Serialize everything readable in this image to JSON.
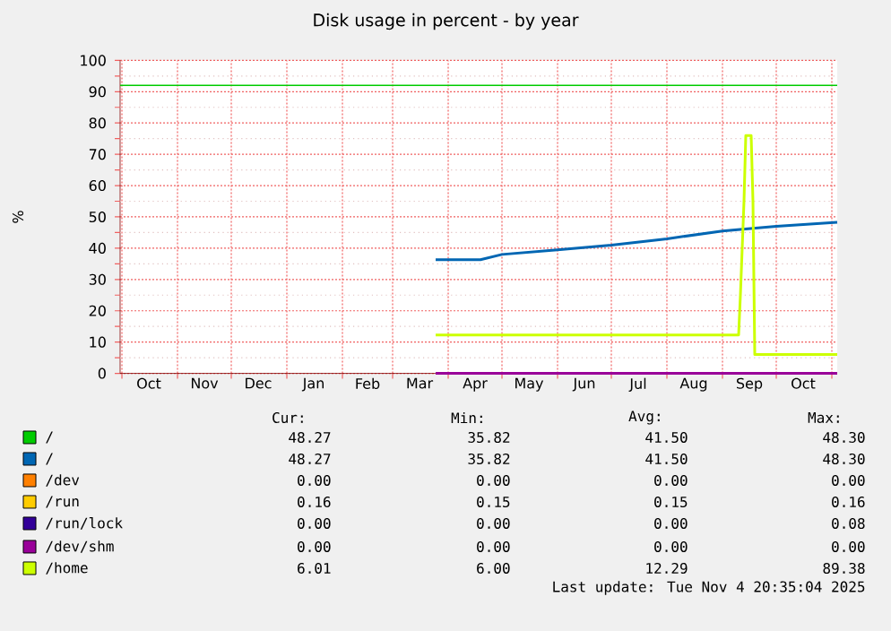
{
  "chart_data": {
    "type": "line",
    "title": "Disk usage in percent - by year",
    "ylabel": "%",
    "xlim": [
      "2024-09-30",
      "2025-11-04"
    ],
    "ylim": [
      0,
      100
    ],
    "xticks": [
      {
        "value": "2024-10-01",
        "label": null
      },
      {
        "value": "2024-11-01",
        "label": null
      },
      {
        "value": "2024-12-01",
        "label": null
      },
      {
        "value": "2025-01-01",
        "label": null
      },
      {
        "value": "2025-02-01",
        "label": null
      },
      {
        "value": "2025-03-01",
        "label": null
      },
      {
        "value": "2025-04-01",
        "label": null
      },
      {
        "value": "2025-05-01",
        "label": null
      },
      {
        "value": "2025-06-01",
        "label": null
      },
      {
        "value": "2025-07-01",
        "label": null
      },
      {
        "value": "2025-08-01",
        "label": null
      },
      {
        "value": "2025-09-01",
        "label": null
      },
      {
        "value": "2025-10-01",
        "label": null
      },
      {
        "value": "2025-11-01",
        "label": null
      },
      {
        "value": "2024-10-16",
        "label": "Oct"
      },
      {
        "value": "2024-11-16",
        "label": "Nov"
      },
      {
        "value": "2024-12-16",
        "label": "Dec"
      },
      {
        "value": "2025-01-16",
        "label": "Jan"
      },
      {
        "value": "2025-02-15",
        "label": "Feb"
      },
      {
        "value": "2025-03-16",
        "label": "Mar"
      },
      {
        "value": "2025-04-16",
        "label": "Apr"
      },
      {
        "value": "2025-05-16",
        "label": "May"
      },
      {
        "value": "2025-06-16",
        "label": "Jun"
      },
      {
        "value": "2025-07-16",
        "label": "Jul"
      },
      {
        "value": "2025-08-16",
        "label": "Aug"
      },
      {
        "value": "2025-09-16",
        "label": "Sep"
      },
      {
        "value": "2025-10-16",
        "label": "Oct"
      }
    ],
    "yticks": [
      0,
      10,
      20,
      30,
      40,
      50,
      60,
      70,
      80,
      90,
      100,
      {
        "value": 5,
        "label": null
      },
      {
        "value": 15,
        "label": null
      },
      {
        "value": 25,
        "label": null
      },
      {
        "value": 35,
        "label": null
      },
      {
        "value": 45,
        "label": null
      },
      {
        "value": 55,
        "label": null
      },
      {
        "value": 65,
        "label": null
      },
      {
        "value": 75,
        "label": null
      },
      {
        "value": 85,
        "label": null
      },
      {
        "value": 95,
        "label": null
      }
    ],
    "grid": true,
    "legend": "bottom",
    "ref_lines": [
      {
        "axis": "y",
        "value": 92,
        "color": "#00cc00"
      }
    ],
    "series": [
      {
        "name": "/",
        "color": "#00cc00",
        "values": [
          null
        ]
      },
      {
        "name": "/",
        "color": "#0066b3",
        "x": [
          "2025-03-25",
          "2025-04-19",
          "2025-05-01",
          "2025-06-01",
          "2025-07-01",
          "2025-08-01",
          "2025-09-01",
          "2025-10-01",
          "2025-11-04"
        ],
        "values": [
          36.3,
          36.3,
          38,
          39.5,
          41,
          43,
          45.5,
          47,
          48.3
        ]
      },
      {
        "name": "/dev",
        "color": "#ff8000",
        "values": [
          null
        ]
      },
      {
        "name": "/run",
        "color": "#ffcc00",
        "values": [
          null
        ]
      },
      {
        "name": "/run/lock",
        "color": "#330099",
        "values": [
          null
        ]
      },
      {
        "name": "/dev/shm",
        "color": "#990099",
        "x": [
          "2025-03-25",
          "2025-11-04"
        ],
        "values": [
          0,
          0
        ]
      },
      {
        "name": "/home",
        "color": "#ccff00",
        "x": [
          "2025-03-25",
          "2025-09-10",
          "2025-09-11",
          "2025-09-12",
          "2025-09-13",
          "2025-09-14",
          "2025-09-17",
          "2025-09-18",
          "2025-09-19",
          "2025-11-04"
        ],
        "values": [
          12.3,
          12.3,
          25,
          40,
          55,
          76,
          76,
          55,
          6,
          6
        ]
      }
    ],
    "annotations": [
      "Cur:",
      "Min:",
      "Avg:",
      "Max:",
      "48.27",
      "35.82",
      "41.50",
      "48.30",
      "48.27",
      "35.82",
      "41.50",
      "48.30",
      "0.00",
      "0.00",
      "0.00",
      "0.00",
      "0.16",
      "0.15",
      "0.15",
      "0.16",
      "0.00",
      "0.00",
      "0.00",
      "0.08",
      "0.00",
      "0.00",
      "0.00",
      "0.00",
      "6.01",
      "6.00",
      "12.29",
      "89.38",
      "Last update:  Tue Nov  4 20:35:04 2025"
    ]
  }
}
